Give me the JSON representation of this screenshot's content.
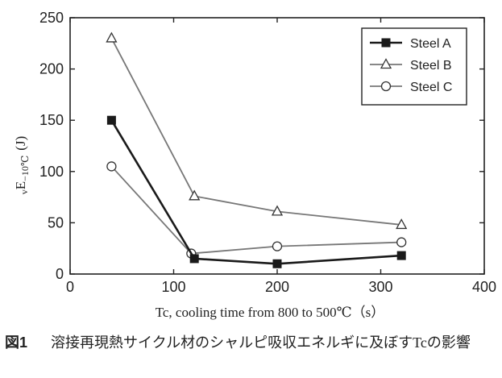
{
  "chart_data": {
    "type": "line",
    "xlabel": "Tc, cooling time from 800 to 500℃（s）",
    "ylabel": "vE−10℃ (J)",
    "ylabel_parts": {
      "prefix": "v",
      "main": "E",
      "sub": "−10℃",
      "unit": "(J)"
    },
    "xlim": [
      0,
      400
    ],
    "ylim": [
      0,
      250
    ],
    "x_ticks": [
      0,
      100,
      200,
      300,
      400
    ],
    "y_ticks": [
      0,
      50,
      100,
      150,
      200,
      250
    ],
    "grid": false,
    "legend_position": "top-right",
    "series": [
      {
        "name": "Steel A",
        "marker": "filled-square",
        "color": "#1a1a1a",
        "x": [
          40,
          120,
          200,
          320
        ],
        "y": [
          150,
          15,
          10,
          18
        ]
      },
      {
        "name": "Steel B",
        "marker": "open-triangle",
        "color": "#777777",
        "x": [
          40,
          120,
          200,
          320
        ],
        "y": [
          230,
          76,
          61,
          48
        ]
      },
      {
        "name": "Steel C",
        "marker": "open-circle",
        "color": "#777777",
        "x": [
          40,
          117,
          200,
          320
        ],
        "y": [
          105,
          20,
          27,
          31
        ]
      }
    ]
  },
  "caption": {
    "figure_number": "図1",
    "text": "溶接再現熱サイクル材のシャルピ吸収エネルギに及ぼすTcの影響"
  }
}
